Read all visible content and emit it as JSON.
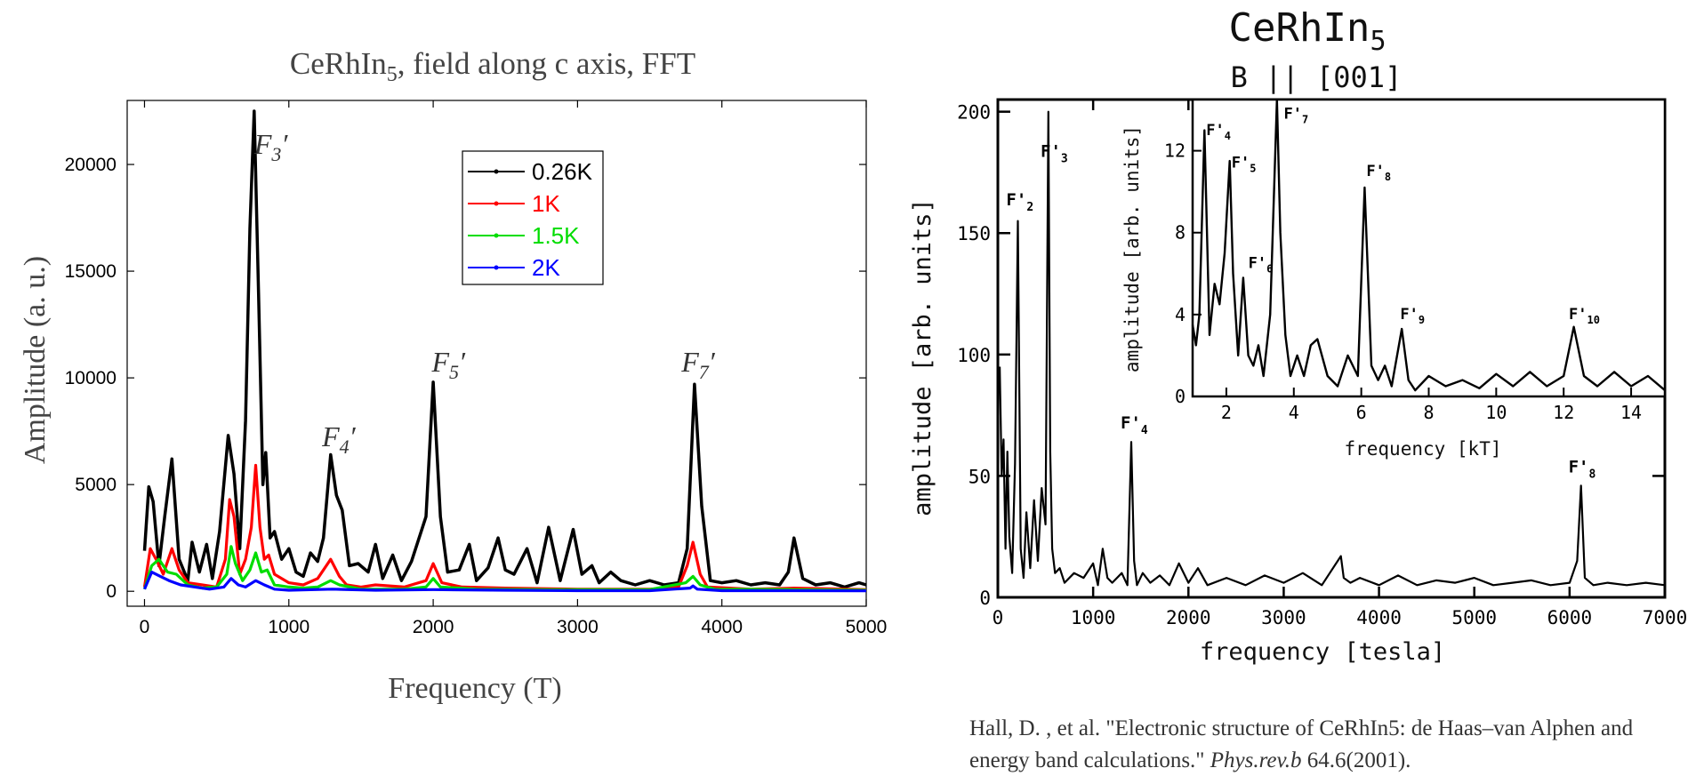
{
  "left_chart": {
    "title_main": "CeRhIn",
    "title_sub": "5",
    "title_rest": ", field along c axis, FFT",
    "xlabel": "Frequency (T)",
    "ylabel": "Amplitude (a. u.)",
    "xlim": [
      -120,
      5000
    ],
    "ylim": [
      -700,
      23000
    ],
    "x_ticks": [
      "0",
      "1000",
      "2000",
      "3000",
      "4000",
      "5000"
    ],
    "x_tick_values": [
      0,
      1000,
      2000,
      3000,
      4000,
      5000
    ],
    "y_ticks": [
      "0",
      "5000",
      "10000",
      "15000",
      "20000"
    ],
    "y_tick_values": [
      0,
      5000,
      10000,
      15000,
      20000
    ],
    "legend": [
      {
        "label": "0.26K",
        "color": "#000000"
      },
      {
        "label": "1K",
        "color": "#ff0000"
      },
      {
        "label": "1.5K",
        "color": "#00dd00"
      },
      {
        "label": "2K",
        "color": "#0000ff"
      }
    ],
    "annotations": [
      {
        "base": "F",
        "sub": "3",
        "prime": "′",
        "x": 760,
        "y": 20500
      },
      {
        "base": "F",
        "sub": "4",
        "prime": "′",
        "x": 1230,
        "y": 6800
      },
      {
        "base": "F",
        "sub": "5",
        "prime": "′",
        "x": 1990,
        "y": 10300
      },
      {
        "base": "F",
        "sub": "7",
        "prime": "′",
        "x": 3720,
        "y": 10300
      }
    ]
  },
  "chart_data": [
    {
      "type": "line",
      "title": "CeRhIn5, field along c axis, FFT",
      "xlabel": "Frequency (T)",
      "ylabel": "Amplitude (a. u.)",
      "xlim": [
        -120,
        5000
      ],
      "ylim": [
        -700,
        23000
      ],
      "legend_position": "top-right",
      "series": [
        {
          "name": "0.26K",
          "color": "#000000",
          "style": "solid, dotted at main peak",
          "x": [
            0,
            30,
            60,
            100,
            140,
            190,
            240,
            300,
            330,
            380,
            430,
            470,
            520,
            580,
            620,
            660,
            700,
            730,
            760,
            790,
            820,
            840,
            870,
            900,
            950,
            1000,
            1050,
            1100,
            1150,
            1200,
            1240,
            1290,
            1330,
            1370,
            1420,
            1480,
            1550,
            1600,
            1650,
            1720,
            1780,
            1850,
            1950,
            2000,
            2050,
            2100,
            2180,
            2250,
            2300,
            2380,
            2450,
            2500,
            2560,
            2650,
            2720,
            2800,
            2880,
            2970,
            3030,
            3100,
            3150,
            3230,
            3300,
            3400,
            3500,
            3600,
            3700,
            3760,
            3810,
            3860,
            3920,
            4000,
            4100,
            4200,
            4300,
            4400,
            4460,
            4500,
            4560,
            4650,
            4750,
            4850,
            4950,
            5000
          ],
          "y": [
            1900,
            4900,
            4200,
            1200,
            3500,
            6200,
            1500,
            500,
            2300,
            900,
            2200,
            600,
            2800,
            7300,
            5500,
            2000,
            8000,
            17000,
            22500,
            14000,
            5000,
            6500,
            2500,
            2800,
            1500,
            2000,
            900,
            700,
            1800,
            1400,
            2500,
            6400,
            4500,
            3800,
            1200,
            1300,
            900,
            2200,
            600,
            1700,
            500,
            1400,
            3500,
            9800,
            3500,
            900,
            1000,
            2200,
            500,
            1100,
            2500,
            1000,
            800,
            2000,
            400,
            3000,
            500,
            2900,
            800,
            1200,
            400,
            900,
            500,
            300,
            500,
            300,
            400,
            2000,
            9700,
            4000,
            500,
            400,
            500,
            300,
            400,
            300,
            900,
            2500,
            600,
            300,
            400,
            200,
            400,
            300
          ]
        },
        {
          "name": "1K",
          "color": "#ff0000",
          "style": "solid",
          "x": [
            0,
            40,
            80,
            130,
            190,
            240,
            300,
            400,
            500,
            560,
            590,
            620,
            660,
            700,
            740,
            770,
            800,
            830,
            860,
            900,
            1000,
            1100,
            1200,
            1290,
            1350,
            1400,
            1500,
            1600,
            1800,
            1950,
            2000,
            2060,
            2200,
            2500,
            3000,
            3500,
            3700,
            3760,
            3800,
            3850,
            3900,
            4200,
            4500,
            5000
          ],
          "y": [
            200,
            2000,
            1500,
            800,
            2000,
            1000,
            400,
            300,
            200,
            1500,
            4300,
            3500,
            800,
            1500,
            3000,
            5900,
            3000,
            1500,
            1700,
            800,
            400,
            300,
            600,
            1500,
            700,
            300,
            200,
            300,
            200,
            500,
            1300,
            400,
            200,
            150,
            100,
            100,
            200,
            1200,
            2300,
            800,
            200,
            100,
            150,
            80
          ]
        },
        {
          "name": "1.5K",
          "color": "#00dd00",
          "style": "solid",
          "x": [
            0,
            50,
            100,
            160,
            220,
            300,
            400,
            500,
            570,
            600,
            630,
            680,
            730,
            770,
            810,
            850,
            900,
            1000,
            1100,
            1200,
            1290,
            1350,
            1500,
            1800,
            1950,
            2000,
            2050,
            2300,
            2800,
            3500,
            3750,
            3800,
            3850,
            3950,
            4500,
            5000
          ],
          "y": [
            100,
            1200,
            1500,
            900,
            800,
            300,
            150,
            200,
            800,
            2100,
            1300,
            500,
            1000,
            1800,
            900,
            1000,
            300,
            200,
            150,
            200,
            500,
            300,
            100,
            100,
            200,
            600,
            200,
            100,
            80,
            80,
            400,
            700,
            300,
            100,
            80,
            50
          ]
        },
        {
          "name": "2K",
          "color": "#0000ff",
          "style": "solid",
          "x": [
            0,
            50,
            110,
            170,
            250,
            350,
            450,
            550,
            600,
            650,
            700,
            770,
            830,
            900,
            1000,
            1300,
            1600,
            2000,
            2500,
            3000,
            3500,
            3780,
            3800,
            3830,
            4000,
            4500,
            5000
          ],
          "y": [
            100,
            900,
            700,
            500,
            300,
            200,
            100,
            200,
            600,
            300,
            200,
            500,
            300,
            100,
            50,
            100,
            50,
            80,
            50,
            30,
            30,
            150,
            250,
            100,
            30,
            30,
            20
          ]
        }
      ]
    },
    {
      "type": "line",
      "title": "CeRhIn5",
      "subtitle": "B || [001]",
      "xlabel": "frequency [tesla]",
      "ylabel": "amplitude [arb. units]",
      "xlim": [
        0,
        7000
      ],
      "ylim": [
        0,
        205
      ],
      "series": [
        {
          "name": "",
          "color": "#000000",
          "x": [
            20,
            40,
            60,
            80,
            100,
            120,
            150,
            180,
            210,
            240,
            270,
            300,
            340,
            380,
            420,
            460,
            500,
            530,
            550,
            570,
            600,
            650,
            700,
            800,
            900,
            1000,
            1050,
            1100,
            1150,
            1200,
            1300,
            1360,
            1400,
            1430,
            1460,
            1520,
            1600,
            1700,
            1800,
            1900,
            2000,
            2100,
            2200,
            2400,
            2600,
            2800,
            3000,
            3200,
            3400,
            3600,
            3630,
            3700,
            3800,
            4000,
            4200,
            4400,
            4600,
            4800,
            5000,
            5200,
            5400,
            5600,
            5800,
            6000,
            6080,
            6120,
            6160,
            6250,
            6400,
            6600,
            6800,
            7000
          ],
          "y": [
            95,
            50,
            65,
            20,
            60,
            25,
            10,
            55,
            155,
            20,
            8,
            35,
            12,
            40,
            15,
            45,
            30,
            200,
            60,
            20,
            10,
            12,
            6,
            10,
            8,
            14,
            5,
            20,
            8,
            6,
            10,
            5,
            64,
            15,
            5,
            10,
            6,
            9,
            5,
            14,
            6,
            12,
            5,
            8,
            5,
            9,
            6,
            10,
            5,
            17,
            8,
            6,
            8,
            5,
            9,
            5,
            7,
            6,
            8,
            5,
            6,
            7,
            5,
            6,
            15,
            46,
            8,
            5,
            6,
            5,
            6,
            5
          ]
        }
      ],
      "annotations": [
        {
          "label": "F'2",
          "x": 200,
          "y": 160
        },
        {
          "label": "F'3",
          "x": 560,
          "y": 180
        },
        {
          "label": "F'4",
          "x": 1400,
          "y": 68
        },
        {
          "label": "F'8",
          "x": 6100,
          "y": 50
        }
      ],
      "x_ticks": [
        "0",
        "1000",
        "2000",
        "3000",
        "4000",
        "5000",
        "6000",
        "7000"
      ],
      "x_tick_values": [
        0,
        1000,
        2000,
        3000,
        4000,
        5000,
        6000,
        7000
      ],
      "y_ticks": [
        "0",
        "50",
        "100",
        "150",
        "200"
      ],
      "y_tick_values": [
        0,
        50,
        100,
        150,
        200
      ]
    },
    {
      "type": "line",
      "title": "",
      "xlabel": "frequency [kT]",
      "ylabel": "amplitude [arb. units]",
      "xlim": [
        1,
        15
      ],
      "ylim": [
        0,
        14.5
      ],
      "series": [
        {
          "name": "",
          "color": "#000000",
          "x": [
            1.0,
            1.1,
            1.2,
            1.35,
            1.5,
            1.65,
            1.8,
            1.95,
            2.1,
            2.2,
            2.35,
            2.5,
            2.65,
            2.8,
            2.95,
            3.1,
            3.3,
            3.5,
            3.6,
            3.75,
            3.9,
            4.1,
            4.3,
            4.5,
            4.7,
            5.0,
            5.3,
            5.6,
            5.9,
            6.1,
            6.3,
            6.5,
            6.7,
            6.9,
            7.2,
            7.4,
            7.6,
            8.0,
            8.5,
            9.0,
            9.5,
            10.0,
            10.5,
            11.0,
            11.5,
            12.0,
            12.3,
            12.6,
            13.0,
            13.5,
            14.0,
            14.5,
            15.0
          ],
          "y": [
            3.5,
            2.5,
            4,
            13,
            3,
            5.5,
            4.5,
            7,
            11.5,
            6,
            2,
            5.8,
            2,
            1.5,
            2.5,
            1,
            4,
            14.5,
            8,
            3,
            1,
            2,
            1,
            2.5,
            2.8,
            1,
            0.5,
            2,
            1,
            10.2,
            1.5,
            0.8,
            1.5,
            0.5,
            3.3,
            0.8,
            0.3,
            1,
            0.5,
            0.8,
            0.4,
            1.1,
            0.5,
            1.2,
            0.5,
            1,
            3.4,
            1,
            0.5,
            1.2,
            0.5,
            1,
            0.3
          ]
        }
      ],
      "annotations": [
        {
          "label": "F'4",
          "x": 1.35,
          "y": 12.6
        },
        {
          "label": "F'5",
          "x": 2.1,
          "y": 11
        },
        {
          "label": "F'6",
          "x": 2.6,
          "y": 6.1
        },
        {
          "label": "F'7",
          "x": 3.65,
          "y": 13.4
        },
        {
          "label": "F'8",
          "x": 6.1,
          "y": 10.6
        },
        {
          "label": "F'9",
          "x": 7.1,
          "y": 3.6
        },
        {
          "label": "F'10",
          "x": 12.1,
          "y": 3.6
        }
      ],
      "x_ticks": [
        "2",
        "4",
        "6",
        "8",
        "10",
        "12",
        "14"
      ],
      "x_tick_values": [
        2,
        4,
        6,
        8,
        10,
        12,
        14
      ],
      "y_ticks": [
        "0",
        "4",
        "8",
        "12"
      ],
      "y_tick_values": [
        0,
        4,
        8,
        12
      ]
    }
  ],
  "right_chart": {
    "title_main": "CeRhIn",
    "title_sub": "5",
    "subtitle": "B || [001]",
    "xlabel": "frequency [tesla]",
    "ylabel": "amplitude [arb. units]",
    "inset_xlabel": "frequency [kT]",
    "inset_ylabel": "amplitude [arb. units]"
  },
  "citation": {
    "text_before": "Hall, D. , et al. \"Electronic structure of CeRhIn5: de Haas–van Alphen and energy band calculations.\"",
    "journal": "Phys.rev.b",
    "text_after": " 64.6(2001)."
  }
}
